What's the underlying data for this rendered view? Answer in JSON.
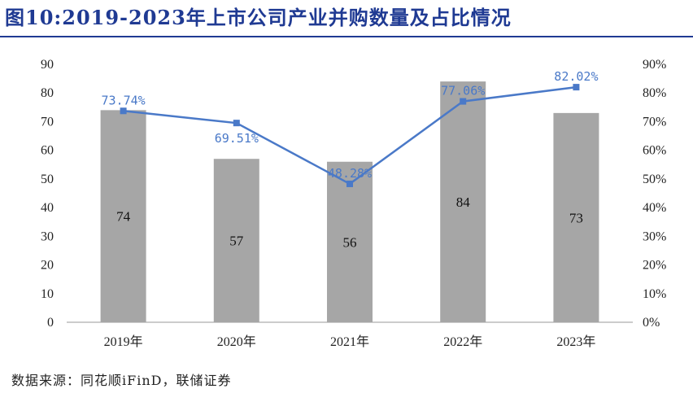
{
  "header": {
    "title": "图10:2019-2023年上市公司产业并购数量及占比情况"
  },
  "footer": {
    "source": "数据来源：同花顺iFinD，联储证券"
  },
  "chart_data": {
    "type": "bar",
    "categories": [
      "2019年",
      "2020年",
      "2021年",
      "2022年",
      "2023年"
    ],
    "series": [
      {
        "type": "bar",
        "axis": "left",
        "values": [
          74,
          57,
          56,
          84,
          73
        ],
        "labels": [
          "74",
          "57",
          "56",
          "84",
          "73"
        ],
        "color": "#a6a6a6"
      },
      {
        "type": "line",
        "axis": "right",
        "values": [
          73.74,
          69.51,
          48.28,
          77.06,
          82.02
        ],
        "labels": [
          "73.74%",
          "69.51%",
          "48.28%",
          "77.06%",
          "82.02%"
        ],
        "color": "#4a79c8"
      }
    ],
    "left_axis": {
      "range": [
        0,
        90
      ],
      "ticks": [
        "0",
        "10",
        "20",
        "30",
        "40",
        "50",
        "60",
        "70",
        "80",
        "90"
      ]
    },
    "right_axis": {
      "range": [
        0,
        90
      ],
      "ticks": [
        "0%",
        "10%",
        "20%",
        "30%",
        "40%",
        "50%",
        "60%",
        "70%",
        "80%",
        "90%"
      ]
    },
    "grid": false,
    "legend": "none"
  }
}
